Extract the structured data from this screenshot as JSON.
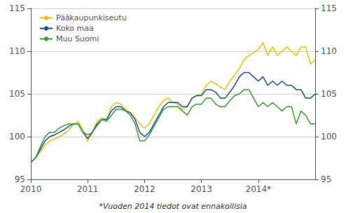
{
  "chart_data": {
    "type": "line",
    "annotations": [
      "*Vuoden 2014 tiedot ovat ennakollisia"
    ],
    "x": [
      2010,
      2010.0833,
      2010.1667,
      2010.25,
      2010.3333,
      2010.4167,
      2010.5,
      2010.5833,
      2010.6667,
      2010.75,
      2010.8333,
      2010.9167,
      2011,
      2011.0833,
      2011.1667,
      2011.25,
      2011.3333,
      2011.4167,
      2011.5,
      2011.5833,
      2011.6667,
      2011.75,
      2011.8333,
      2011.9167,
      2012,
      2012.0833,
      2012.1667,
      2012.25,
      2012.3333,
      2012.4167,
      2012.5,
      2012.5833,
      2012.6667,
      2012.75,
      2012.8333,
      2012.9167,
      2013,
      2013.0833,
      2013.1667,
      2013.25,
      2013.3333,
      2013.4167,
      2013.5,
      2013.5833,
      2013.6667,
      2013.75,
      2013.8333,
      2013.9167,
      2014,
      2014.0833,
      2014.1667,
      2014.25,
      2014.3333,
      2014.4167,
      2014.5,
      2014.5833,
      2014.6667,
      2014.75,
      2014.8333,
      2014.9167,
      2015
    ],
    "series": [
      {
        "name": "Pääkaupunkiseutu",
        "color": "#f0c000",
        "values": [
          97.0,
          97.5,
          98.2,
          99.0,
          99.5,
          99.7,
          100.0,
          100.3,
          100.8,
          101.4,
          101.8,
          100.8,
          99.5,
          100.5,
          101.8,
          102.2,
          102.0,
          103.5,
          104.0,
          103.8,
          103.2,
          102.8,
          102.2,
          101.5,
          101.0,
          101.5,
          102.5,
          103.5,
          104.2,
          104.5,
          104.0,
          103.8,
          103.2,
          103.5,
          104.5,
          104.8,
          105.0,
          106.0,
          106.5,
          106.2,
          105.8,
          105.5,
          106.5,
          107.2,
          108.0,
          109.0,
          109.5,
          109.8,
          110.2,
          111.0,
          109.5,
          110.5,
          109.5,
          110.0,
          110.5,
          110.0,
          109.5,
          110.5,
          110.5,
          108.5,
          109.0
        ]
      },
      {
        "name": "Koko maa",
        "color": "#1a4f9c",
        "values": [
          97.0,
          97.5,
          98.5,
          99.5,
          100.0,
          100.2,
          100.5,
          100.8,
          101.2,
          101.5,
          101.5,
          100.5,
          99.8,
          100.5,
          101.5,
          102.0,
          102.0,
          103.0,
          103.5,
          103.5,
          103.0,
          102.8,
          102.0,
          100.5,
          100.0,
          100.5,
          101.5,
          102.5,
          103.5,
          104.0,
          104.0,
          104.0,
          103.5,
          103.5,
          104.5,
          104.8,
          104.8,
          105.5,
          105.5,
          105.2,
          104.5,
          104.5,
          105.2,
          106.0,
          107.0,
          107.5,
          107.5,
          107.0,
          106.5,
          107.0,
          106.0,
          106.5,
          106.0,
          106.5,
          106.0,
          106.0,
          105.5,
          105.5,
          104.5,
          104.5,
          105.0
        ]
      },
      {
        "name": "Muu Suomi",
        "color": "#3a9c3a",
        "values": [
          97.0,
          97.5,
          98.8,
          100.0,
          100.5,
          100.5,
          101.0,
          101.3,
          101.5,
          101.5,
          101.5,
          100.5,
          100.2,
          100.5,
          101.3,
          102.0,
          101.8,
          102.5,
          103.2,
          103.2,
          103.0,
          102.5,
          101.5,
          99.5,
          99.5,
          100.2,
          101.2,
          102.2,
          103.2,
          103.5,
          103.5,
          103.5,
          103.0,
          102.5,
          103.5,
          103.8,
          103.8,
          104.5,
          104.5,
          103.8,
          103.5,
          103.5,
          104.2,
          104.8,
          105.0,
          105.5,
          105.5,
          104.5,
          103.5,
          104.0,
          103.5,
          104.0,
          103.5,
          103.0,
          103.5,
          103.5,
          101.5,
          103.0,
          102.5,
          101.5,
          101.5
        ]
      }
    ],
    "xlim": [
      2010,
      2015
    ],
    "xticks": [
      2010,
      2011,
      2012,
      2013,
      {
        "value": 2014,
        "label": "2014*"
      }
    ],
    "ylim": [
      95,
      115
    ],
    "yticks": [
      95,
      100,
      105,
      110,
      115
    ],
    "y2lim": [
      95,
      115
    ],
    "y2ticks": [
      95,
      100,
      105,
      110,
      115
    ],
    "grid": true,
    "legend": "upper left"
  }
}
